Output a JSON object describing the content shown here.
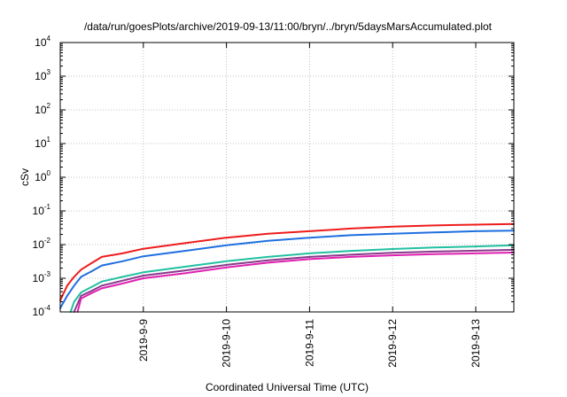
{
  "chart_data": {
    "type": "line",
    "title": "/data/run/goesPlots/archive/2019-09-13/11:00/bryn/../bryn/5daysMarsAccumulated.plot",
    "xlabel": "Coordinated Universal Time (UTC)",
    "ylabel": "cSv",
    "x_scale": "date",
    "xlim": [
      "2019-09-08T00:00",
      "2019-09-13T11:00"
    ],
    "x_ticks": [
      "2019-9-9",
      "2019-9-10",
      "2019-9-11",
      "2019-9-12",
      "2019-9-13"
    ],
    "y_scale": "log",
    "ylim": [
      0.0001,
      10000
    ],
    "y_ticks": [
      {
        "base": "10",
        "exp": "-4",
        "value": 0.0001
      },
      {
        "base": "10",
        "exp": "-3",
        "value": 0.001
      },
      {
        "base": "10",
        "exp": "-2",
        "value": 0.01
      },
      {
        "base": "10",
        "exp": "-1",
        "value": 0.1
      },
      {
        "base": "10",
        "exp": "0",
        "value": 1
      },
      {
        "base": "10",
        "exp": "1",
        "value": 10
      },
      {
        "base": "10",
        "exp": "2",
        "value": 100
      },
      {
        "base": "10",
        "exp": "3",
        "value": 1000
      },
      {
        "base": "10",
        "exp": "4",
        "value": 10000
      }
    ],
    "grid": true,
    "series": [
      {
        "color": "#ee1c1c",
        "x": [
          "2019-09-08T00:00",
          "2019-09-08T02:00",
          "2019-09-08T04:00",
          "2019-09-08T06:00",
          "2019-09-08T09:00",
          "2019-09-08T12:00",
          "2019-09-08T18:00",
          "2019-09-09T00:00",
          "2019-09-09T12:00",
          "2019-09-10T00:00",
          "2019-09-10T12:00",
          "2019-09-11T00:00",
          "2019-09-11T12:00",
          "2019-09-12T00:00",
          "2019-09-12T12:00",
          "2019-09-13T00:00",
          "2019-09-13T11:00"
        ],
        "values": [
          0.00022,
          0.0006,
          0.0011,
          0.0018,
          0.0028,
          0.0043,
          0.0055,
          0.0075,
          0.011,
          0.016,
          0.021,
          0.025,
          0.03,
          0.034,
          0.037,
          0.039,
          0.041
        ]
      },
      {
        "color": "#1f6fe0",
        "x": [
          "2019-09-08T00:00",
          "2019-09-08T02:00",
          "2019-09-08T04:00",
          "2019-09-08T06:00",
          "2019-09-08T09:00",
          "2019-09-08T12:00",
          "2019-09-08T18:00",
          "2019-09-09T00:00",
          "2019-09-09T12:00",
          "2019-09-10T00:00",
          "2019-09-10T12:00",
          "2019-09-11T00:00",
          "2019-09-11T12:00",
          "2019-09-12T00:00",
          "2019-09-12T12:00",
          "2019-09-13T00:00",
          "2019-09-13T11:00"
        ],
        "values": [
          0.00013,
          0.0003,
          0.0006,
          0.0011,
          0.0016,
          0.0024,
          0.0032,
          0.0045,
          0.0065,
          0.0095,
          0.013,
          0.016,
          0.019,
          0.021,
          0.023,
          0.025,
          0.026
        ]
      },
      {
        "color": "#22c0a0",
        "x": [
          "2019-09-08T03:00",
          "2019-09-08T04:00",
          "2019-09-08T06:00",
          "2019-09-08T09:00",
          "2019-09-08T12:00",
          "2019-09-08T18:00",
          "2019-09-09T00:00",
          "2019-09-09T12:00",
          "2019-09-10T00:00",
          "2019-09-10T12:00",
          "2019-09-11T00:00",
          "2019-09-11T12:00",
          "2019-09-12T00:00",
          "2019-09-12T12:00",
          "2019-09-13T00:00",
          "2019-09-13T11:00"
        ],
        "values": [
          0.0001,
          0.0002,
          0.00038,
          0.00055,
          0.0008,
          0.0011,
          0.0015,
          0.0022,
          0.0032,
          0.0043,
          0.0055,
          0.0065,
          0.0074,
          0.0082,
          0.0088,
          0.0095
        ]
      },
      {
        "color": "#8a3a8c",
        "x": [
          "2019-09-08T04:00",
          "2019-09-08T06:00",
          "2019-09-08T09:00",
          "2019-09-08T12:00",
          "2019-09-08T18:00",
          "2019-09-09T00:00",
          "2019-09-09T12:00",
          "2019-09-10T00:00",
          "2019-09-10T12:00",
          "2019-09-11T00:00",
          "2019-09-11T12:00",
          "2019-09-12T00:00",
          "2019-09-12T12:00",
          "2019-09-13T00:00",
          "2019-09-13T11:00"
        ],
        "values": [
          0.0001,
          0.0003,
          0.00042,
          0.0006,
          0.00085,
          0.0012,
          0.0017,
          0.0025,
          0.0034,
          0.0043,
          0.005,
          0.0057,
          0.0062,
          0.0066,
          0.007
        ]
      },
      {
        "color": "#e020b0",
        "x": [
          "2019-09-08T05:00",
          "2019-09-08T06:00",
          "2019-09-08T09:00",
          "2019-09-08T12:00",
          "2019-09-08T18:00",
          "2019-09-09T00:00",
          "2019-09-09T12:00",
          "2019-09-10T00:00",
          "2019-09-10T12:00",
          "2019-09-11T00:00",
          "2019-09-11T12:00",
          "2019-09-12T00:00",
          "2019-09-12T12:00",
          "2019-09-13T00:00",
          "2019-09-13T11:00"
        ],
        "values": [
          0.0001,
          0.00025,
          0.00036,
          0.0005,
          0.0007,
          0.001,
          0.0014,
          0.0021,
          0.0029,
          0.0037,
          0.0043,
          0.0048,
          0.0052,
          0.0055,
          0.0058
        ]
      }
    ]
  }
}
